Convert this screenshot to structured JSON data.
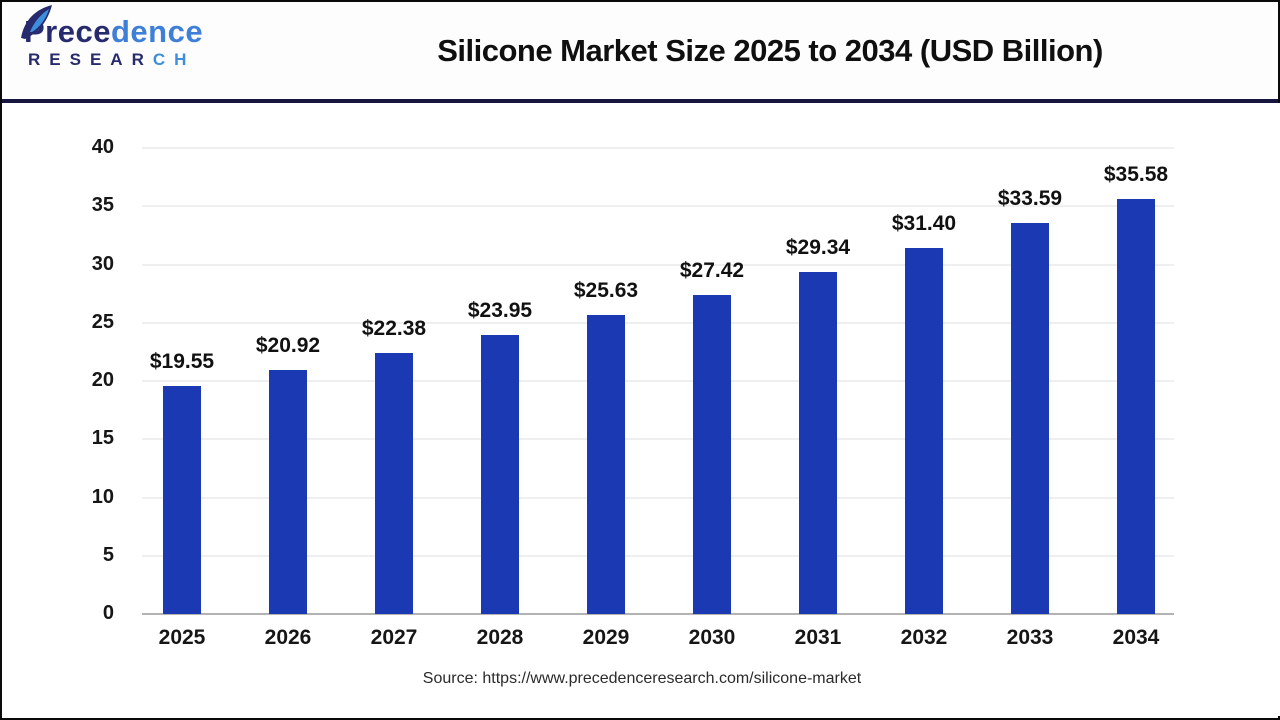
{
  "header": {
    "logo": {
      "brand_part1": "Prece",
      "brand_part2": "dence",
      "sub_part1": "RESEAR",
      "sub_part2": "CH",
      "color_dark": "#272b6d",
      "color_light": "#3e7fd7"
    },
    "title": "Silicone Market Size 2025 to 2034 (USD Billion)"
  },
  "chart_data": {
    "type": "bar",
    "title": "Silicone Market Size 2025 to 2034 (USD Billion)",
    "categories": [
      "2025",
      "2026",
      "2027",
      "2028",
      "2029",
      "2030",
      "2031",
      "2032",
      "2033",
      "2034"
    ],
    "values": [
      19.55,
      20.92,
      22.38,
      23.95,
      25.63,
      27.42,
      29.34,
      31.4,
      33.59,
      35.58
    ],
    "labels": [
      "$19.55",
      "$20.92",
      "$22.38",
      "$23.95",
      "$25.63",
      "$27.42",
      "$29.34",
      "$31.40",
      "$33.59",
      "$35.58"
    ],
    "xlabel": "",
    "ylabel": "",
    "ylim": [
      0,
      40
    ],
    "yticks": [
      0,
      5,
      10,
      15,
      20,
      25,
      30,
      35,
      40
    ],
    "bar_color": "#1b39b3",
    "grid": "horizontal",
    "legend_position": "none"
  },
  "footer": {
    "source": "Source: https://www.precedenceresearch.com/silicone-market"
  }
}
